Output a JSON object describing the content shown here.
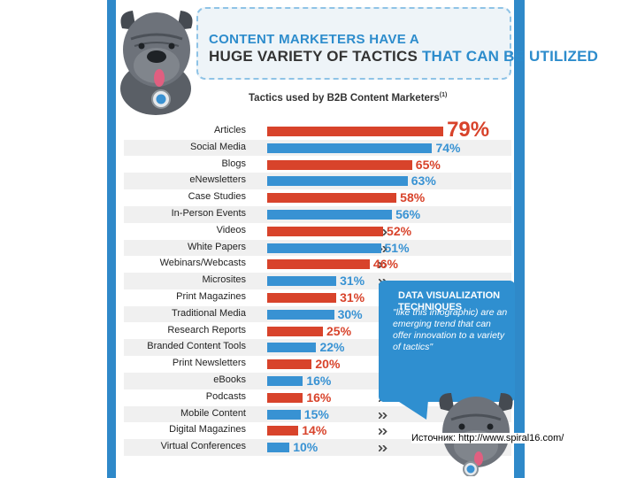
{
  "title": {
    "line1": "CONTENT MARKETERS HAVE A",
    "line2_part1": "HUGE VARIETY OF TACTICS",
    "line2_part2": " THAT CAN BE UTILIZED"
  },
  "subtitle": "Tactics used by B2B Content Marketers",
  "subtitle_note": "(1)",
  "callout": {
    "heading": "DATA VISUALIZATION TECHNIQUES",
    "body": "\"like this infographic) are an emerging trend that can offer innovation to a variety of tactics\""
  },
  "source": "Источник: http://www.spiral16.com/",
  "colors": {
    "red": "#d8432b",
    "blue": "#3892d3",
    "frame": "#2f89c9"
  },
  "icons": [
    "dog-mascot-icon",
    "chevron-double-icon"
  ],
  "chart_data": {
    "type": "bar",
    "orientation": "horizontal",
    "title": "Tactics used by B2B Content Marketers",
    "unit": "%",
    "xlim": [
      0,
      100
    ],
    "categories": [
      "Articles",
      "Social Media",
      "Blogs",
      "eNewsletters",
      "Case Studies",
      "In-Person Events",
      "Videos",
      "White Papers",
      "Webinars/Webcasts",
      "Microsites",
      "Print Magazines",
      "Traditional Media",
      "Research Reports",
      "Branded Content Tools",
      "Print Newsletters",
      "eBooks",
      "Podcasts",
      "Mobile Content",
      "Digital Magazines",
      "Virtual Conferences"
    ],
    "values": [
      79,
      74,
      65,
      63,
      58,
      56,
      52,
      51,
      46,
      31,
      31,
      30,
      25,
      22,
      20,
      16,
      16,
      15,
      14,
      10
    ],
    "labels": [
      "79%",
      "74%",
      "65%",
      "63%",
      "58%",
      "56%",
      "52%",
      "51%",
      "46%",
      "31%",
      "31%",
      "30%",
      "25%",
      "22%",
      "20%",
      "16%",
      "16%",
      "15%",
      "14%",
      "10%"
    ],
    "bar_colors": [
      "red",
      "blue",
      "red",
      "blue",
      "red",
      "blue",
      "red",
      "blue",
      "red",
      "blue",
      "red",
      "blue",
      "red",
      "blue",
      "red",
      "blue",
      "red",
      "blue",
      "red",
      "blue"
    ]
  }
}
